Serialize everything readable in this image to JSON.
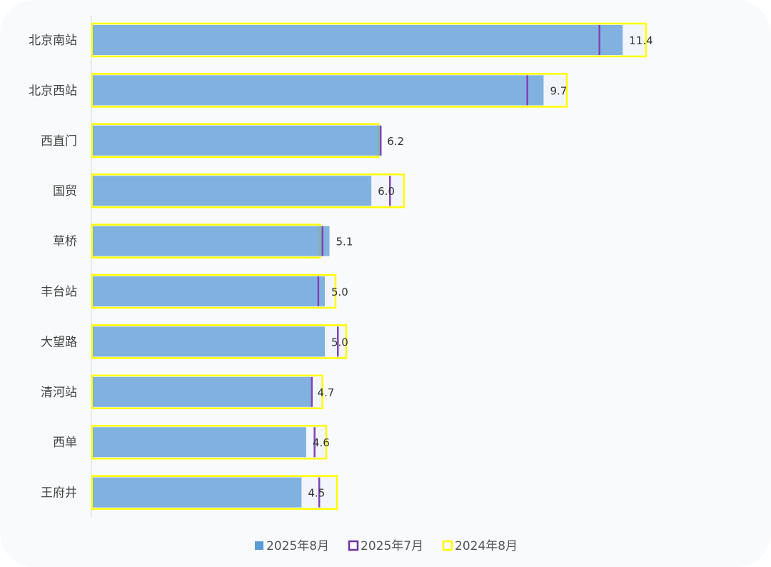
{
  "chart_data": {
    "type": "bar",
    "orientation": "horizontal",
    "categories": [
      "北京南站",
      "北京西站",
      "西直门",
      "国贸",
      "草桥",
      "丰台站",
      "大望路",
      "清河站",
      "西单",
      "王府井"
    ],
    "series": [
      {
        "name": "2025年8月",
        "style": "filled-bar",
        "color": "#5b9bd5",
        "values": [
          11.4,
          9.7,
          6.2,
          6.0,
          5.1,
          5.0,
          5.0,
          4.7,
          4.6,
          4.5
        ]
      },
      {
        "name": "2025年7月",
        "style": "marker-line",
        "color": "#7030a0",
        "values": [
          10.9,
          9.35,
          6.2,
          6.4,
          4.95,
          4.86,
          5.28,
          4.72,
          4.78,
          4.88
        ]
      },
      {
        "name": "2024年8月",
        "style": "outline-box",
        "color": "#ffff00",
        "values": [
          11.9,
          10.2,
          6.15,
          6.7,
          4.9,
          5.23,
          5.46,
          4.95,
          5.03,
          5.26
        ]
      }
    ],
    "data_labels": [
      "11.4",
      "9.7",
      "6.2",
      "6.0",
      "5.1",
      "5.0",
      "5.0",
      "4.7",
      "4.6",
      "4.5"
    ],
    "xlim": [
      0,
      14
    ],
    "grid": false,
    "legend_position": "bottom"
  }
}
